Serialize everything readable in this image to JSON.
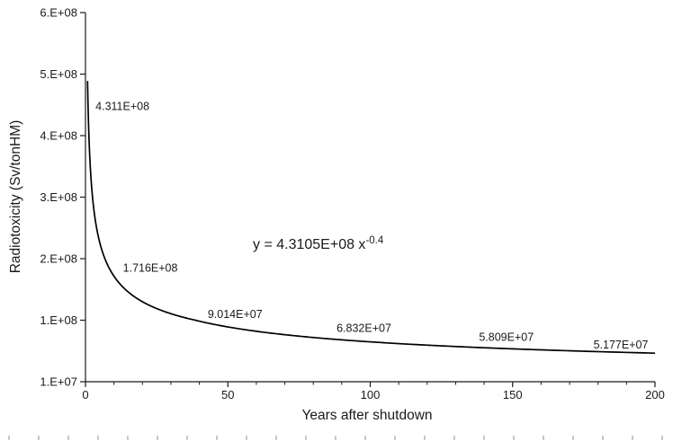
{
  "chart_data": {
    "type": "line",
    "title": "",
    "xlabel": "Years after shutdown",
    "ylabel": "Radiotoxicity (Sv/tonHM)",
    "xlim": [
      0,
      200
    ],
    "grid": false,
    "legend": false,
    "line_color": "#000000",
    "x_ticks": [
      {
        "value": 0,
        "label": "0"
      },
      {
        "value": 50,
        "label": "50"
      },
      {
        "value": 100,
        "label": "100"
      },
      {
        "value": 150,
        "label": "150"
      },
      {
        "value": 200,
        "label": "200"
      }
    ],
    "x_minor_tick_step": 10,
    "y_ticks": [
      {
        "value": 600000000,
        "label": "6.E+08"
      },
      {
        "value": 500000000,
        "label": "5.E+08"
      },
      {
        "value": 400000000,
        "label": "4.E+08"
      },
      {
        "value": 300000000,
        "label": "3.E+08"
      },
      {
        "value": 200000000,
        "label": "2.E+08"
      },
      {
        "value": 100000000,
        "label": "1.E+08"
      },
      {
        "value": 10000000,
        "label": "1.E+07"
      }
    ],
    "trendline": {
      "coefficient": 431050000,
      "exponent": -0.4,
      "x_start": 0.73,
      "x_end": 200
    },
    "equation": {
      "text": "y = 4.3105E+08 x",
      "superscript": "-0.4"
    },
    "points": [
      {
        "x": 1,
        "y": 431100000,
        "label": "4.311E+08"
      },
      {
        "x": 10,
        "y": 171600000,
        "label": "1.716E+08"
      },
      {
        "x": 50,
        "y": 90140000,
        "label": "9.014E+07"
      },
      {
        "x": 100,
        "y": 68320000,
        "label": "6.832E+07"
      },
      {
        "x": 150,
        "y": 58090000,
        "label": "5.809E+07"
      },
      {
        "x": 200,
        "y": 51770000,
        "label": "5.177E+07"
      }
    ]
  }
}
